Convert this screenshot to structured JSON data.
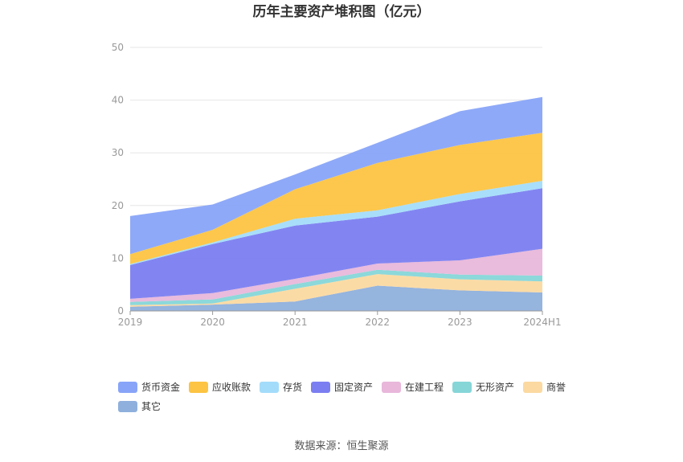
{
  "chart_data": {
    "type": "area",
    "stacked": true,
    "title": "历年主要资产堆积图（亿元）",
    "categories": [
      "2019",
      "2020",
      "2021",
      "2022",
      "2023",
      "2024H1"
    ],
    "ylim": [
      0,
      50
    ],
    "yticks": [
      0,
      10,
      20,
      30,
      40,
      50
    ],
    "grid": true,
    "legend_position": "bottom",
    "series": [
      {
        "name": "其它",
        "color": "#8fb0dc",
        "values": [
          0.8,
          1.2,
          1.8,
          4.8,
          3.9,
          3.5
        ]
      },
      {
        "name": "商誉",
        "color": "#fbd9a0",
        "values": [
          0.3,
          0.2,
          2.4,
          2.2,
          2.1,
          2.1
        ]
      },
      {
        "name": "无形资产",
        "color": "#86d6d8",
        "values": [
          0.6,
          0.8,
          0.9,
          0.8,
          0.9,
          1.1
        ]
      },
      {
        "name": "在建工程",
        "color": "#e8b7da",
        "values": [
          0.6,
          1.2,
          1.0,
          1.2,
          2.7,
          5.1
        ]
      },
      {
        "name": "固定资产",
        "color": "#7b7ef0",
        "values": [
          6.4,
          9.3,
          10.1,
          8.9,
          11.2,
          11.5
        ]
      },
      {
        "name": "存货",
        "color": "#a3dcfa",
        "values": [
          0.2,
          0.3,
          1.3,
          1.2,
          1.4,
          1.4
        ]
      },
      {
        "name": "应收账款",
        "color": "#fcc442",
        "values": [
          1.9,
          2.4,
          5.6,
          9.0,
          9.3,
          9.1
        ]
      },
      {
        "name": "货币资金",
        "color": "#88a4f8",
        "values": [
          7.2,
          4.8,
          2.8,
          3.8,
          6.4,
          6.8
        ]
      }
    ]
  },
  "legend_items": [
    "货币资金",
    "应收账款",
    "存货",
    "固定资产",
    "在建工程",
    "无形资产",
    "商誉",
    "其它"
  ],
  "source": "数据来源：恒生聚源"
}
